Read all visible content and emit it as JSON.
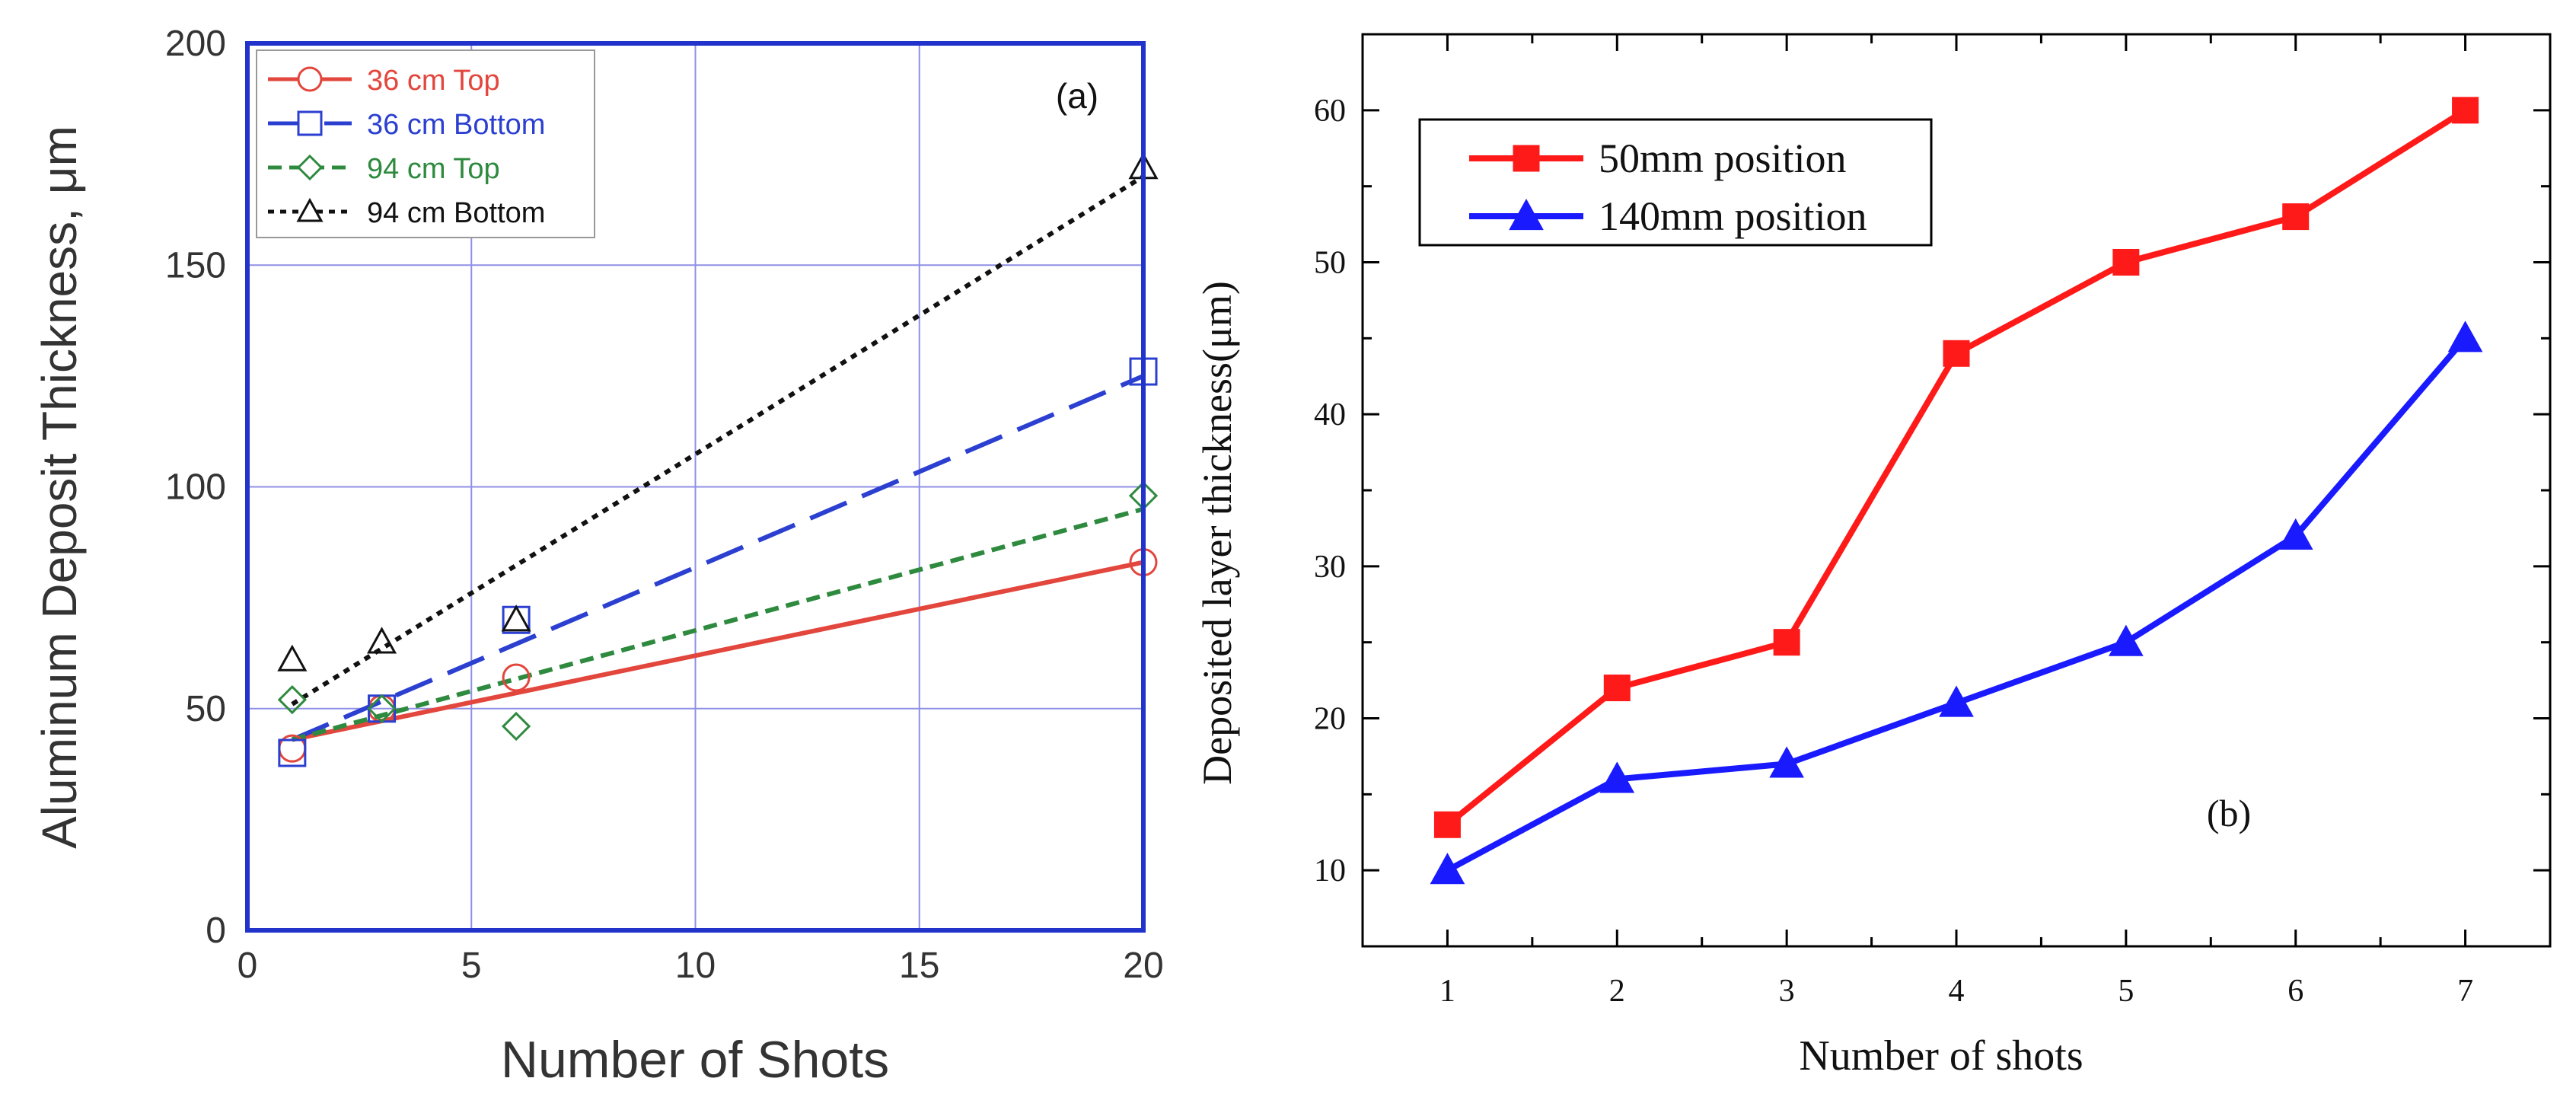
{
  "chart_data": [
    {
      "type": "line",
      "panel_label": "(a)",
      "title": "",
      "xlabel": "Number of Shots",
      "ylabel": "Aluminum Deposit Thickness, μm",
      "xlim": [
        0,
        20
      ],
      "ylim": [
        0,
        200
      ],
      "xticks": [
        0,
        5,
        10,
        15,
        20
      ],
      "yticks": [
        0,
        50,
        100,
        150,
        200
      ],
      "grid": true,
      "legend_position": "top-left",
      "series": [
        {
          "name": "36 cm Top",
          "color": "#e2463c",
          "marker": "circle",
          "dash": "solid",
          "x": [
            1,
            3,
            6,
            20
          ],
          "y": [
            41,
            50,
            57,
            83
          ],
          "fit": {
            "x": [
              1,
              20
            ],
            "y": [
              43,
              83
            ]
          }
        },
        {
          "name": "36 cm Bottom",
          "color": "#2b3fd0",
          "marker": "square",
          "dash": "long-dash",
          "x": [
            1,
            3,
            6,
            20
          ],
          "y": [
            40,
            50,
            70,
            126
          ],
          "fit": {
            "x": [
              1,
              20
            ],
            "y": [
              43,
              125
            ]
          }
        },
        {
          "name": "94 cm Top",
          "color": "#2e8a3e",
          "marker": "diamond",
          "dash": "short-dash",
          "x": [
            1,
            3,
            6,
            20
          ],
          "y": [
            52,
            50,
            46,
            98
          ],
          "fit": {
            "x": [
              1,
              20
            ],
            "y": [
              43,
              95
            ]
          }
        },
        {
          "name": "94 cm Bottom",
          "color": "#111111",
          "marker": "triangle",
          "dash": "dotted",
          "x": [
            1,
            3,
            6,
            20
          ],
          "y": [
            61,
            65,
            70,
            172
          ],
          "fit": {
            "x": [
              1,
              20
            ],
            "y": [
              51,
              170
            ]
          }
        }
      ]
    },
    {
      "type": "line",
      "panel_label": "(b)",
      "title": "",
      "xlabel": "Number of shots",
      "ylabel": "Deposited layer thickness(μm)",
      "xlim": [
        0.5,
        7.5
      ],
      "ylim": [
        5,
        65
      ],
      "xticks": [
        1,
        2,
        3,
        4,
        5,
        6,
        7
      ],
      "yticks": [
        10,
        20,
        30,
        40,
        50,
        60
      ],
      "grid": false,
      "legend_position": "top-left",
      "categories": [
        1,
        2,
        3,
        4,
        5,
        6,
        7
      ],
      "series": [
        {
          "name": "50mm position",
          "color": "#ff1a1a",
          "marker": "square",
          "values": [
            13,
            22,
            25,
            44,
            50,
            53,
            60
          ]
        },
        {
          "name": "140mm position",
          "color": "#1a1aff",
          "marker": "triangle",
          "values": [
            10,
            16,
            17,
            21,
            25,
            32,
            45
          ]
        }
      ]
    }
  ]
}
